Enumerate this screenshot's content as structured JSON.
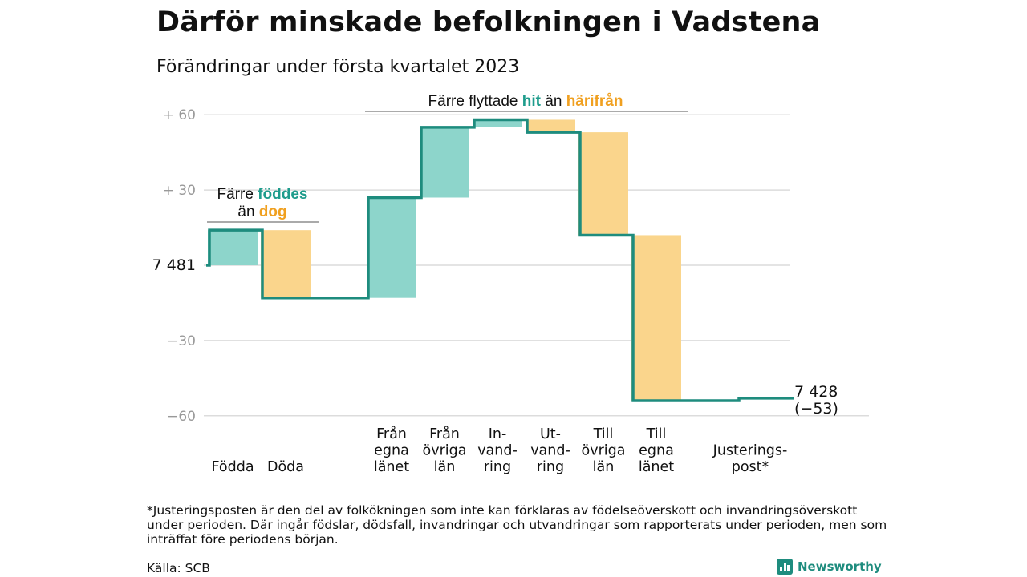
{
  "title": "Därför minskade befolkningen i Vadstena",
  "subtitle": "Förändringar under första kvartalet 2023",
  "chart_data": {
    "type": "waterfall",
    "start_value": 7481,
    "start_label": "7 481",
    "end_label_line1": "7 428",
    "end_label_line2": "(−53)",
    "ylim": [
      -60,
      60
    ],
    "yticks": [
      {
        "value": 60,
        "label": "+ 60"
      },
      {
        "value": 30,
        "label": "+ 30"
      },
      {
        "value": 0,
        "label": ""
      },
      {
        "value": -30,
        "label": "−30"
      },
      {
        "value": -60,
        "label": "−60"
      }
    ],
    "steps": [
      {
        "label_lines": [
          "Födda"
        ],
        "value": 14,
        "kind": "in"
      },
      {
        "label_lines": [
          "Döda"
        ],
        "value": -27,
        "kind": "out"
      },
      {
        "label_lines": [
          "Från",
          "egna",
          "länet"
        ],
        "value": 40,
        "kind": "in"
      },
      {
        "label_lines": [
          "Från",
          "övriga",
          "län"
        ],
        "value": 28,
        "kind": "in"
      },
      {
        "label_lines": [
          "In-",
          "vand-",
          "ring"
        ],
        "value": 3,
        "kind": "in"
      },
      {
        "label_lines": [
          "Ut-",
          "vand-",
          "ring"
        ],
        "value": -5,
        "kind": "out"
      },
      {
        "label_lines": [
          "Till",
          "övriga",
          "län"
        ],
        "value": -41,
        "kind": "out"
      },
      {
        "label_lines": [
          "Till",
          "egna",
          "länet"
        ],
        "value": -66,
        "kind": "out"
      },
      {
        "label_lines": [
          "Justerings-",
          "post*"
        ],
        "value": 1,
        "kind": "adjust"
      }
    ],
    "annotations": {
      "born": {
        "prefix": "Färre ",
        "in_word": "föddes",
        "line2_prefix": "än ",
        "out_word": "dog"
      },
      "moved": {
        "prefix": "Färre flyttade ",
        "in_word": "hit",
        "middle": " än ",
        "out_word": "härifrån"
      }
    },
    "colors": {
      "in_fill": "#8dd5cb",
      "out_fill": "#fad58c",
      "line": "#1e8c7e",
      "in_text": "#1e9c8c",
      "out_text": "#f0a020",
      "grid": "#dcdcdc",
      "tick_text": "#999999"
    }
  },
  "footnote": "*Justeringsposten är den del av folkökningen som inte kan förklaras av födelseöverskott och invandringsöverskott under perioden. Där ingår födslar, dödsfall, invandringar och utvandringar som rapporterats under perioden, men som inträffat före periodens början.",
  "source": "Källa: SCB",
  "brand": "Newsworthy"
}
